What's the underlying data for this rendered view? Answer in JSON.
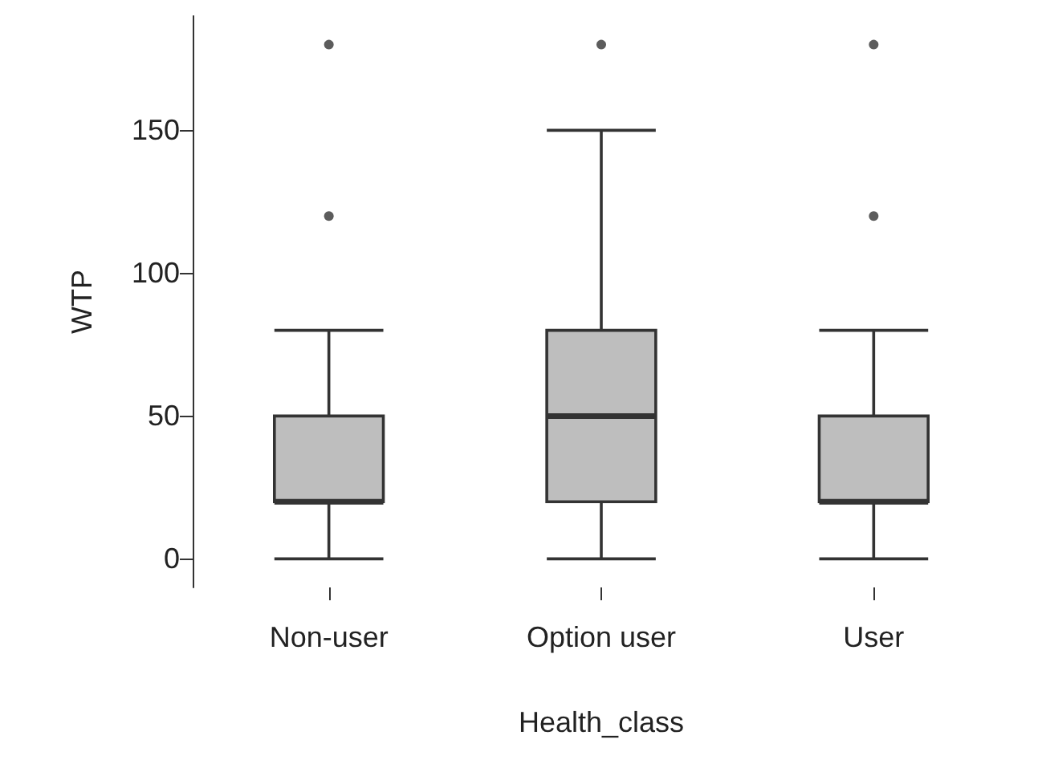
{
  "chart_data": {
    "type": "box",
    "xlabel": "Health_class",
    "ylabel": "WTP",
    "categories": [
      "Non-user",
      "Option user",
      "User"
    ],
    "boxes": [
      {
        "low": 0,
        "q1": 20,
        "median": 20,
        "q3": 50,
        "high": 80,
        "outliers": [
          120,
          180
        ]
      },
      {
        "low": 0,
        "q1": 20,
        "median": 50,
        "q3": 80,
        "high": 150,
        "outliers": [
          180
        ]
      },
      {
        "low": 0,
        "q1": 20,
        "median": 20,
        "q3": 50,
        "high": 80,
        "outliers": [
          120,
          180
        ]
      }
    ],
    "color": "#bebebe",
    "ylim": [
      -10,
      190
    ],
    "yticks": [
      0,
      50,
      100,
      150
    ],
    "grid": false
  }
}
